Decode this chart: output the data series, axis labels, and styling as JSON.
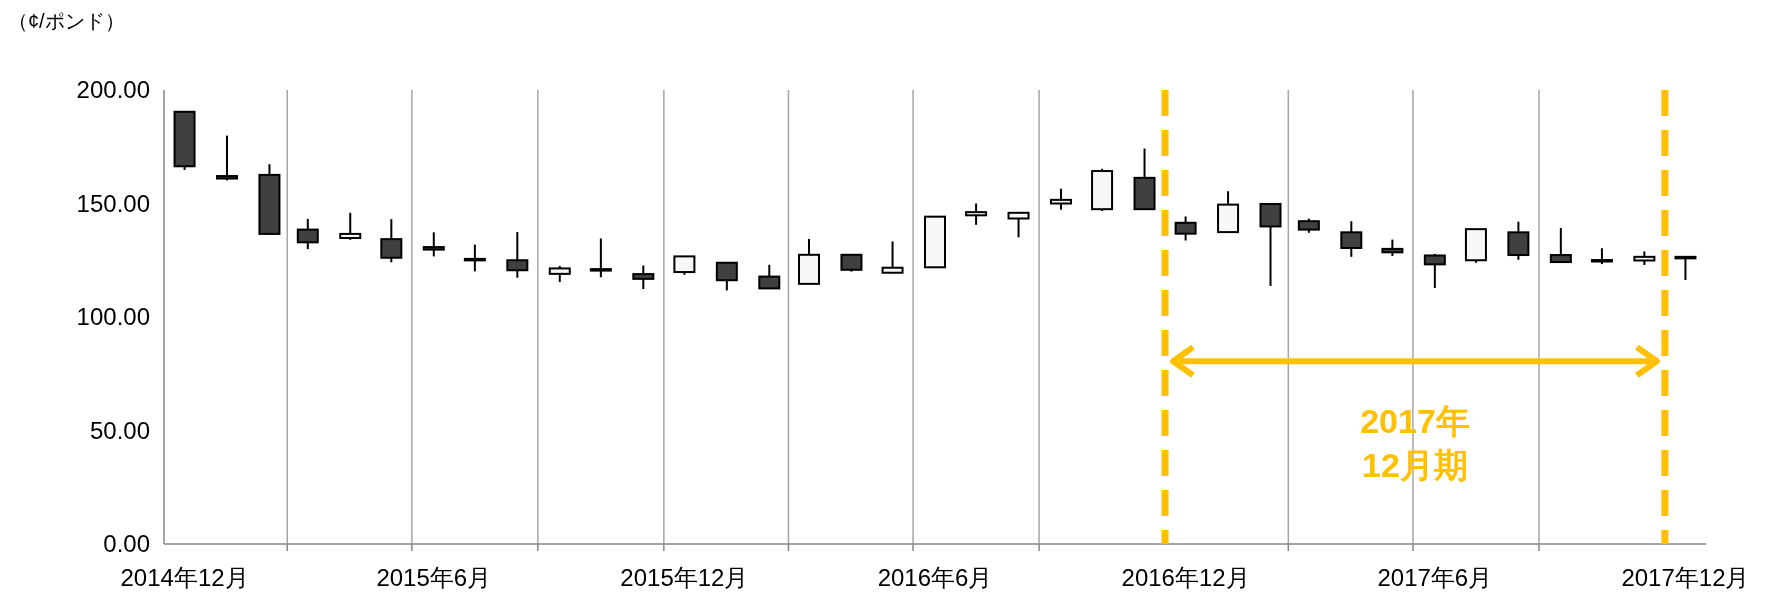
{
  "chart_data": {
    "type": "candlestick",
    "ylabel": "（¢/ポンド）",
    "x": [
      "2014-12-01",
      "2015-01-01",
      "2015-02-01",
      "2015-03-01",
      "2015-04-01",
      "2015-05-01",
      "2015-06-01",
      "2015-07-01",
      "2015-08-01",
      "2015-09-01",
      "2015-10-01",
      "2015-11-01",
      "2015-12-01",
      "2016-01-01",
      "2016-02-01",
      "2016-03-01",
      "2016-04-01",
      "2016-05-01",
      "2016-06-01",
      "2016-07-01",
      "2016-08-01",
      "2016-09-01",
      "2016-10-01",
      "2016-11-01",
      "2016-12-01",
      "2017-01-01",
      "2017-02-01",
      "2017-03-01",
      "2017-04-01",
      "2017-05-01",
      "2017-06-01",
      "2017-07-01",
      "2017-08-01",
      "2017-09-01",
      "2017-10-01",
      "2017-11-01",
      "2017-12-01"
    ],
    "ohlc": [
      [
        190.4,
        190.4,
        164.8,
        166.4
      ],
      [
        162.1,
        179.9,
        160.2,
        161.0
      ],
      [
        162.6,
        167.3,
        136.6,
        136.6
      ],
      [
        138.5,
        143.2,
        129.9,
        132.9
      ],
      [
        134.8,
        145.9,
        134.0,
        136.6
      ],
      [
        134.3,
        143.1,
        124.1,
        126.1
      ],
      [
        130.8,
        137.3,
        126.7,
        129.7
      ],
      [
        125.6,
        131.9,
        120.1,
        125.3
      ],
      [
        125.0,
        137.4,
        117.3,
        120.6
      ],
      [
        119.0,
        122.5,
        115.4,
        121.4
      ],
      [
        121.1,
        134.6,
        117.5,
        120.8
      ],
      [
        118.9,
        122.7,
        112.3,
        116.8
      ],
      [
        119.8,
        126.7,
        118.6,
        126.7
      ],
      [
        123.9,
        123.9,
        111.7,
        116.2
      ],
      [
        117.8,
        123.0,
        112.6,
        112.6
      ],
      [
        114.6,
        134.4,
        114.6,
        127.4
      ],
      [
        127.4,
        127.4,
        120.0,
        120.8
      ],
      [
        119.5,
        133.3,
        119.2,
        121.7
      ],
      [
        121.9,
        144.2,
        121.9,
        144.2
      ],
      [
        144.8,
        150.0,
        140.6,
        146.2
      ],
      [
        143.4,
        145.9,
        135.1,
        145.9
      ],
      [
        150.0,
        156.5,
        147.3,
        151.6
      ],
      [
        147.5,
        165.3,
        146.7,
        164.3
      ],
      [
        161.3,
        174.2,
        147.5,
        147.5
      ],
      [
        141.5,
        144.3,
        133.7,
        136.7
      ],
      [
        137.4,
        155.4,
        137.4,
        149.5
      ],
      [
        149.8,
        149.8,
        113.7,
        139.9
      ],
      [
        142.2,
        143.3,
        137.1,
        138.5
      ],
      [
        137.3,
        142.2,
        126.5,
        130.4
      ],
      [
        130.0,
        134.1,
        126.9,
        128.5
      ],
      [
        127.1,
        127.8,
        112.8,
        123.2
      ],
      [
        125.0,
        138.7,
        123.9,
        138.7
      ],
      [
        137.3,
        142.0,
        125.2,
        127.3
      ],
      [
        127.3,
        139.2,
        124.2,
        124.2
      ],
      [
        125.1,
        130.3,
        123.3,
        124.9
      ],
      [
        124.9,
        128.9,
        122.9,
        126.5
      ],
      [
        126.5,
        126.8,
        116.3,
        126.2
      ]
    ],
    "xlim": [
      "2014-11-16",
      "2017-12-16"
    ],
    "xticks": [
      {
        "value": "2014-12-01",
        "label": "2014年12月"
      },
      {
        "value": "2015-02-14",
        "label": null
      },
      {
        "value": "2015-05-16",
        "label": null
      },
      {
        "value": "2015-06-01",
        "label": "2015年6月"
      },
      {
        "value": "2015-08-16",
        "label": null
      },
      {
        "value": "2015-11-16",
        "label": null
      },
      {
        "value": "2015-12-01",
        "label": "2015年12月"
      },
      {
        "value": "2016-02-15",
        "label": null
      },
      {
        "value": "2016-05-16",
        "label": null
      },
      {
        "value": "2016-06-01",
        "label": "2016年6月"
      },
      {
        "value": "2016-08-16",
        "label": null
      },
      {
        "value": "2016-12-01",
        "label": "2016年12月"
      },
      {
        "value": "2017-02-14",
        "label": null
      },
      {
        "value": "2017-05-16",
        "label": null
      },
      {
        "value": "2017-06-01",
        "label": "2017年6月"
      },
      {
        "value": "2017-08-16",
        "label": null
      },
      {
        "value": "2017-12-01",
        "label": "2017年12月"
      }
    ],
    "ylim": [
      0,
      200
    ],
    "yticks": [
      {
        "value": 0,
        "label": "0.00"
      },
      {
        "value": 50,
        "label": "50.00"
      },
      {
        "value": 100,
        "label": "100.00"
      },
      {
        "value": 150,
        "label": "150.00"
      },
      {
        "value": 200,
        "label": "200.00"
      }
    ],
    "grid": "x",
    "colors": [
      "#404040",
      "#404040",
      "#404040",
      "#404040",
      "#f8f8f8",
      "#404040",
      "#404040",
      "#404040",
      "#404040",
      "#f8f8f8",
      "#404040",
      "#404040",
      "#f8f8f8",
      "#404040",
      "#404040",
      "#f8f8f8",
      "#404040",
      "#f8f8f8",
      "#f8f8f8",
      "#f8f8f8",
      "#f8f8f8",
      "#f8f8f8",
      "#f8f8f8",
      "#404040",
      "#404040",
      "#f8f8f8",
      "#404040",
      "#404040",
      "#404040",
      "#404040",
      "#404040",
      "#f8f8f8",
      "#404040",
      "#404040",
      "#404040",
      "#f8f8f8",
      "#404040"
    ],
    "ref_lines": [
      {
        "axis": "x",
        "value": "2016-11-16",
        "color": "#ffc000",
        "line_style": "dashed"
      },
      {
        "axis": "x",
        "value": "2017-11-16",
        "color": "#ffc000",
        "line_style": "dashed"
      }
    ],
    "annotations": [
      "2017年\n12月期"
    ]
  }
}
